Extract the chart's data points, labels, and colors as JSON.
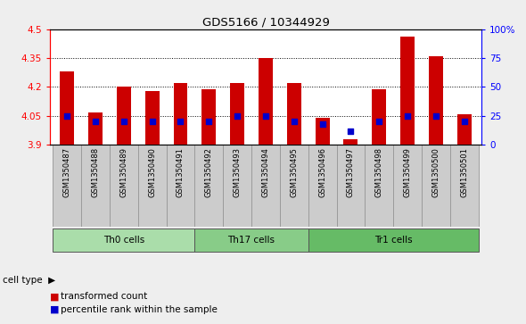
{
  "title": "GDS5166 / 10344929",
  "samples": [
    "GSM1350487",
    "GSM1350488",
    "GSM1350489",
    "GSM1350490",
    "GSM1350491",
    "GSM1350492",
    "GSM1350493",
    "GSM1350494",
    "GSM1350495",
    "GSM1350496",
    "GSM1350497",
    "GSM1350498",
    "GSM1350499",
    "GSM1350500",
    "GSM1350501"
  ],
  "transformed_count": [
    4.28,
    4.07,
    4.2,
    4.18,
    4.22,
    4.19,
    4.22,
    4.35,
    4.22,
    4.04,
    3.93,
    4.19,
    4.46,
    4.36,
    4.06
  ],
  "percentile_rank": [
    25,
    20,
    20,
    20,
    20,
    20,
    25,
    25,
    20,
    18,
    12,
    20,
    25,
    25,
    20
  ],
  "y_min": 3.9,
  "y_max": 4.5,
  "y_ticks": [
    3.9,
    4.05,
    4.2,
    4.35,
    4.5
  ],
  "y_tick_labels": [
    "3.9",
    "4.05",
    "4.2",
    "4.35",
    "4.5"
  ],
  "right_y_ticks": [
    0,
    25,
    50,
    75,
    100
  ],
  "right_y_tick_labels": [
    "0",
    "25",
    "50",
    "75",
    "100%"
  ],
  "bar_color": "#cc0000",
  "dot_color": "#0000cc",
  "bar_bottom": 3.9,
  "group_defs": [
    [
      0,
      5,
      "Th0 cells",
      "#aaddaa"
    ],
    [
      5,
      9,
      "Th17 cells",
      "#88cc88"
    ],
    [
      9,
      15,
      "Tr1 cells",
      "#66bb66"
    ]
  ],
  "legend_red_label": "transformed count",
  "legend_blue_label": "percentile rank within the sample",
  "cell_type_label": "cell type",
  "background_color": "#eeeeee",
  "plot_background": "#ffffff",
  "bar_width": 0.5,
  "xlabels_bg": "#cccccc"
}
